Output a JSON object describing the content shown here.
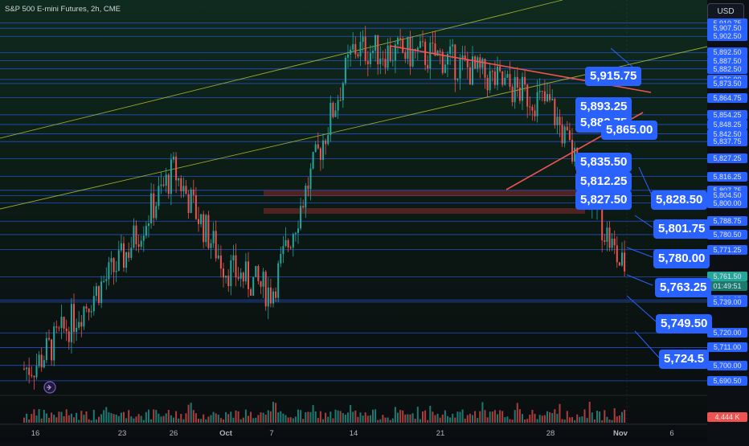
{
  "header": {
    "title": "S&P 500 E-mini Futures, 2h, CME",
    "currency": "USD"
  },
  "axis": {
    "price_labels": [
      "5,910.75",
      "5,907.50",
      "5,902.50",
      "5,892.50",
      "5,887.50",
      "5,882.50",
      "5,876.00",
      "5,873.50",
      "5,864.75",
      "5,854.25",
      "5,848.25",
      "5,842.50",
      "5,837.75",
      "5,827.25",
      "5,816.25",
      "5,807.75",
      "5,804.50",
      "5,800.00",
      "5,788.75",
      "5,780.50",
      "5,771.25",
      "5,754.50",
      "5,740.25",
      "5,739.00",
      "5,720.00",
      "5,711.00",
      "5,700.00",
      "5,690.50"
    ],
    "current_price": "5,761.50",
    "countdown": "01:49:51",
    "volume_label": "4.444 K",
    "time_labels": [
      "16",
      "23",
      "26",
      "Oct",
      "7",
      "14",
      "21",
      "28",
      "Nov",
      "6"
    ]
  },
  "callouts": [
    {
      "text": "5,915.75"
    },
    {
      "text": "5,893.25"
    },
    {
      "text": "5,882.75"
    },
    {
      "text": "5,865.00"
    },
    {
      "text": "5,835.50"
    },
    {
      "text": "5,812.25"
    },
    {
      "text": "5,827.50"
    },
    {
      "text": "5,828.50"
    },
    {
      "text": "5,801.75"
    },
    {
      "text": "5,780.00"
    },
    {
      "text": "5,763.25"
    },
    {
      "text": "5,749.50"
    },
    {
      "text": "5,724.5"
    }
  ],
  "colors": {
    "up": "#26a69a",
    "down": "#ef5350",
    "level_line": "#2962ff",
    "trend_line": "#ef5350",
    "channel_line": "#c0ca33",
    "callout": "#2962ff"
  },
  "chart_data": {
    "type": "candlestick",
    "title": "S&P 500 E-mini Futures, 2h, CME",
    "ylim": [
      5685,
      5915
    ],
    "horizontal_levels": [
      5910.75,
      5907.5,
      5902.5,
      5892.5,
      5887.5,
      5882.5,
      5876,
      5873.5,
      5864.75,
      5854.25,
      5848.25,
      5842.5,
      5837.75,
      5827.25,
      5816.25,
      5807.75,
      5804.5,
      5800,
      5788.75,
      5780.5,
      5771.25,
      5754.5,
      5740.25,
      5739,
      5720,
      5711,
      5700,
      5690.5
    ],
    "key_points": [
      {
        "x": "16",
        "y": 5700
      },
      {
        "x": "23",
        "y": 5765
      },
      {
        "x": "26",
        "y": 5820
      },
      {
        "x": "Oct",
        "y": 5760
      },
      {
        "x": "7",
        "y": 5745
      },
      {
        "x": "14",
        "y": 5895
      },
      {
        "x": "21",
        "y": 5890
      },
      {
        "x": "28",
        "y": 5860
      },
      {
        "x": "Nov",
        "y": 5761.5
      }
    ]
  }
}
